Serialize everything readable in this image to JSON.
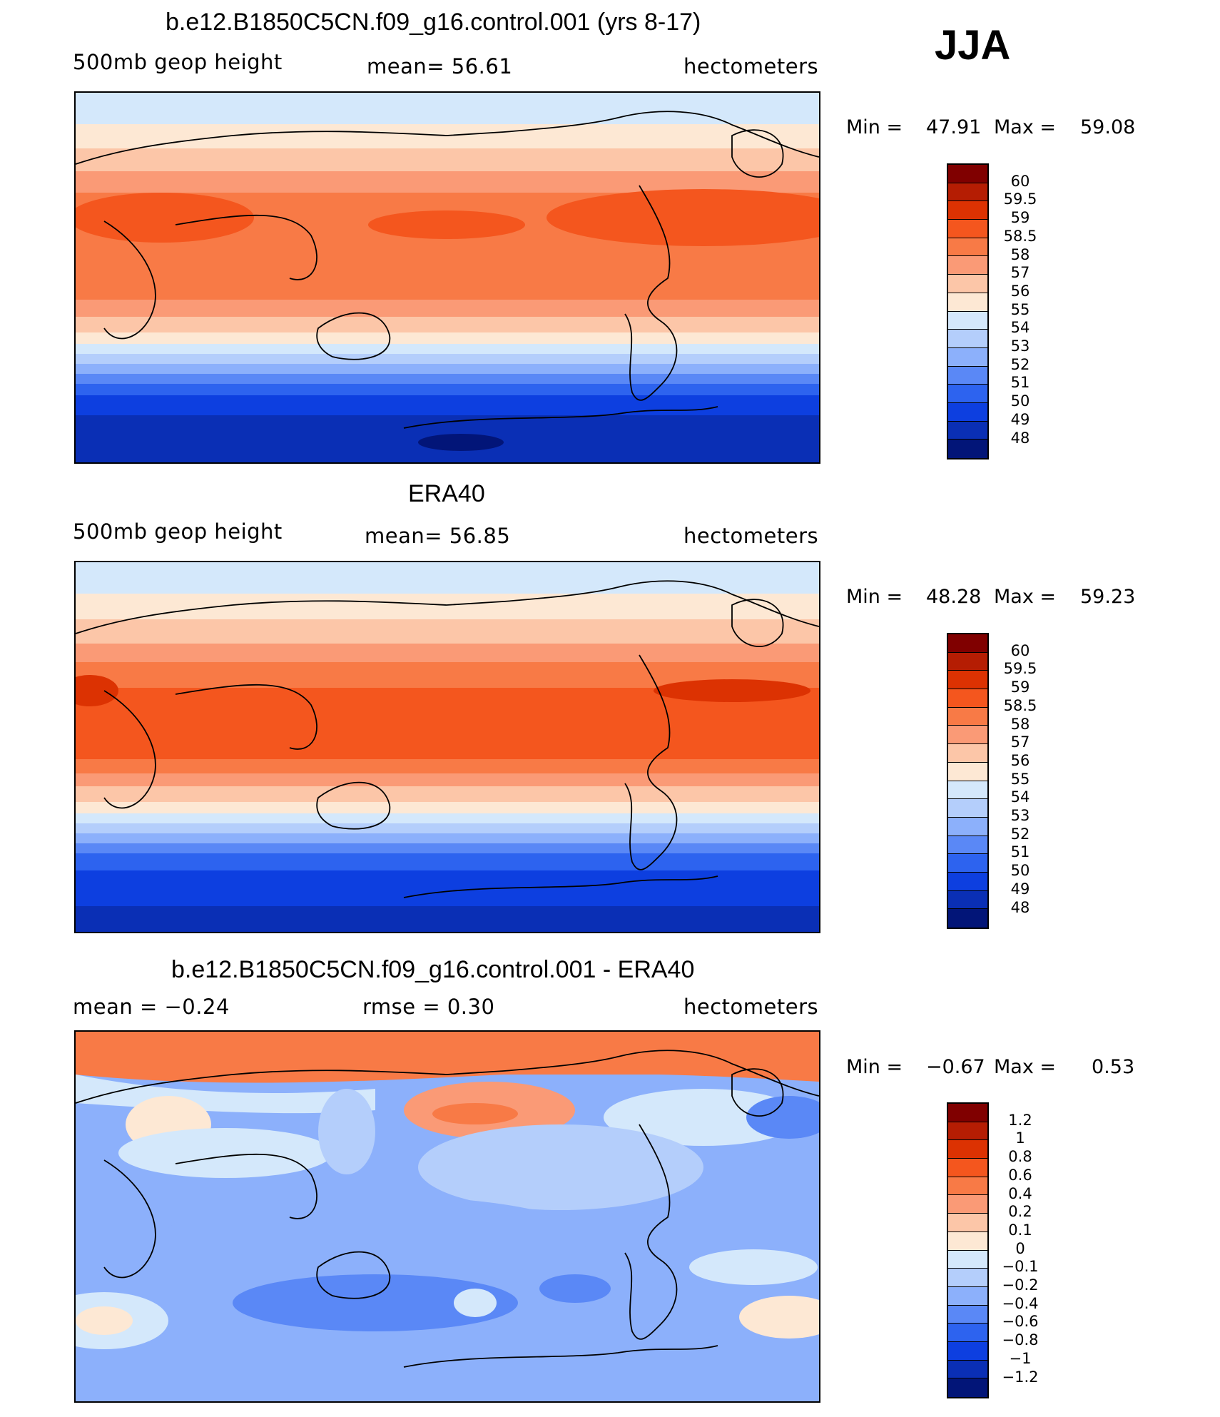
{
  "season": "JJA",
  "panels": [
    {
      "title": "b.e12.B1850C5CN.f09_g16.control.001 (yrs 8-17)",
      "left_label": "500mb  geop  height",
      "center_label": "mean=   56.61",
      "right_label": "hectometers",
      "min_label": "Min  =",
      "min_value": "47.91",
      "max_label": "Max  =",
      "max_value": "59.08"
    },
    {
      "title": "ERA40",
      "left_label": "500mb  geop  height",
      "center_label": "mean=   56.85",
      "right_label": "hectometers",
      "min_label": "Min  =",
      "min_value": "48.28",
      "max_label": "Max  =",
      "max_value": "59.23"
    },
    {
      "title": "b.e12.B1850C5CN.f09_g16.control.001 - ERA40",
      "left_label": "mean  =    −0.24",
      "center_label": "rmse  =     0.30",
      "right_label": "hectometers",
      "min_label": "Min  =",
      "min_value": "−0.67",
      "max_label": "Max  =",
      "max_value": "0.53"
    }
  ],
  "colorbars": {
    "height_levels": [
      "60",
      "59.5",
      "59",
      "58.5",
      "58",
      "57",
      "56",
      "55",
      "54",
      "53",
      "52",
      "51",
      "50",
      "49",
      "48"
    ],
    "diff_levels": [
      "1.2",
      "1",
      "0.8",
      "0.6",
      "0.4",
      "0.2",
      "0.1",
      "0",
      "−0.1",
      "−0.2",
      "−0.4",
      "−0.6",
      "−0.8",
      "−1",
      "−1.2"
    ],
    "colors": [
      "#800000",
      "#b51d03",
      "#dc3202",
      "#f4561e",
      "#f87a46",
      "#fa9a76",
      "#fcc6a8",
      "#fde8d4",
      "#d4e8fb",
      "#b4cefb",
      "#8cb0fb",
      "#5a88f6",
      "#2d63ef",
      "#0d3fe0",
      "#0a2fb5",
      "#021578"
    ]
  }
}
